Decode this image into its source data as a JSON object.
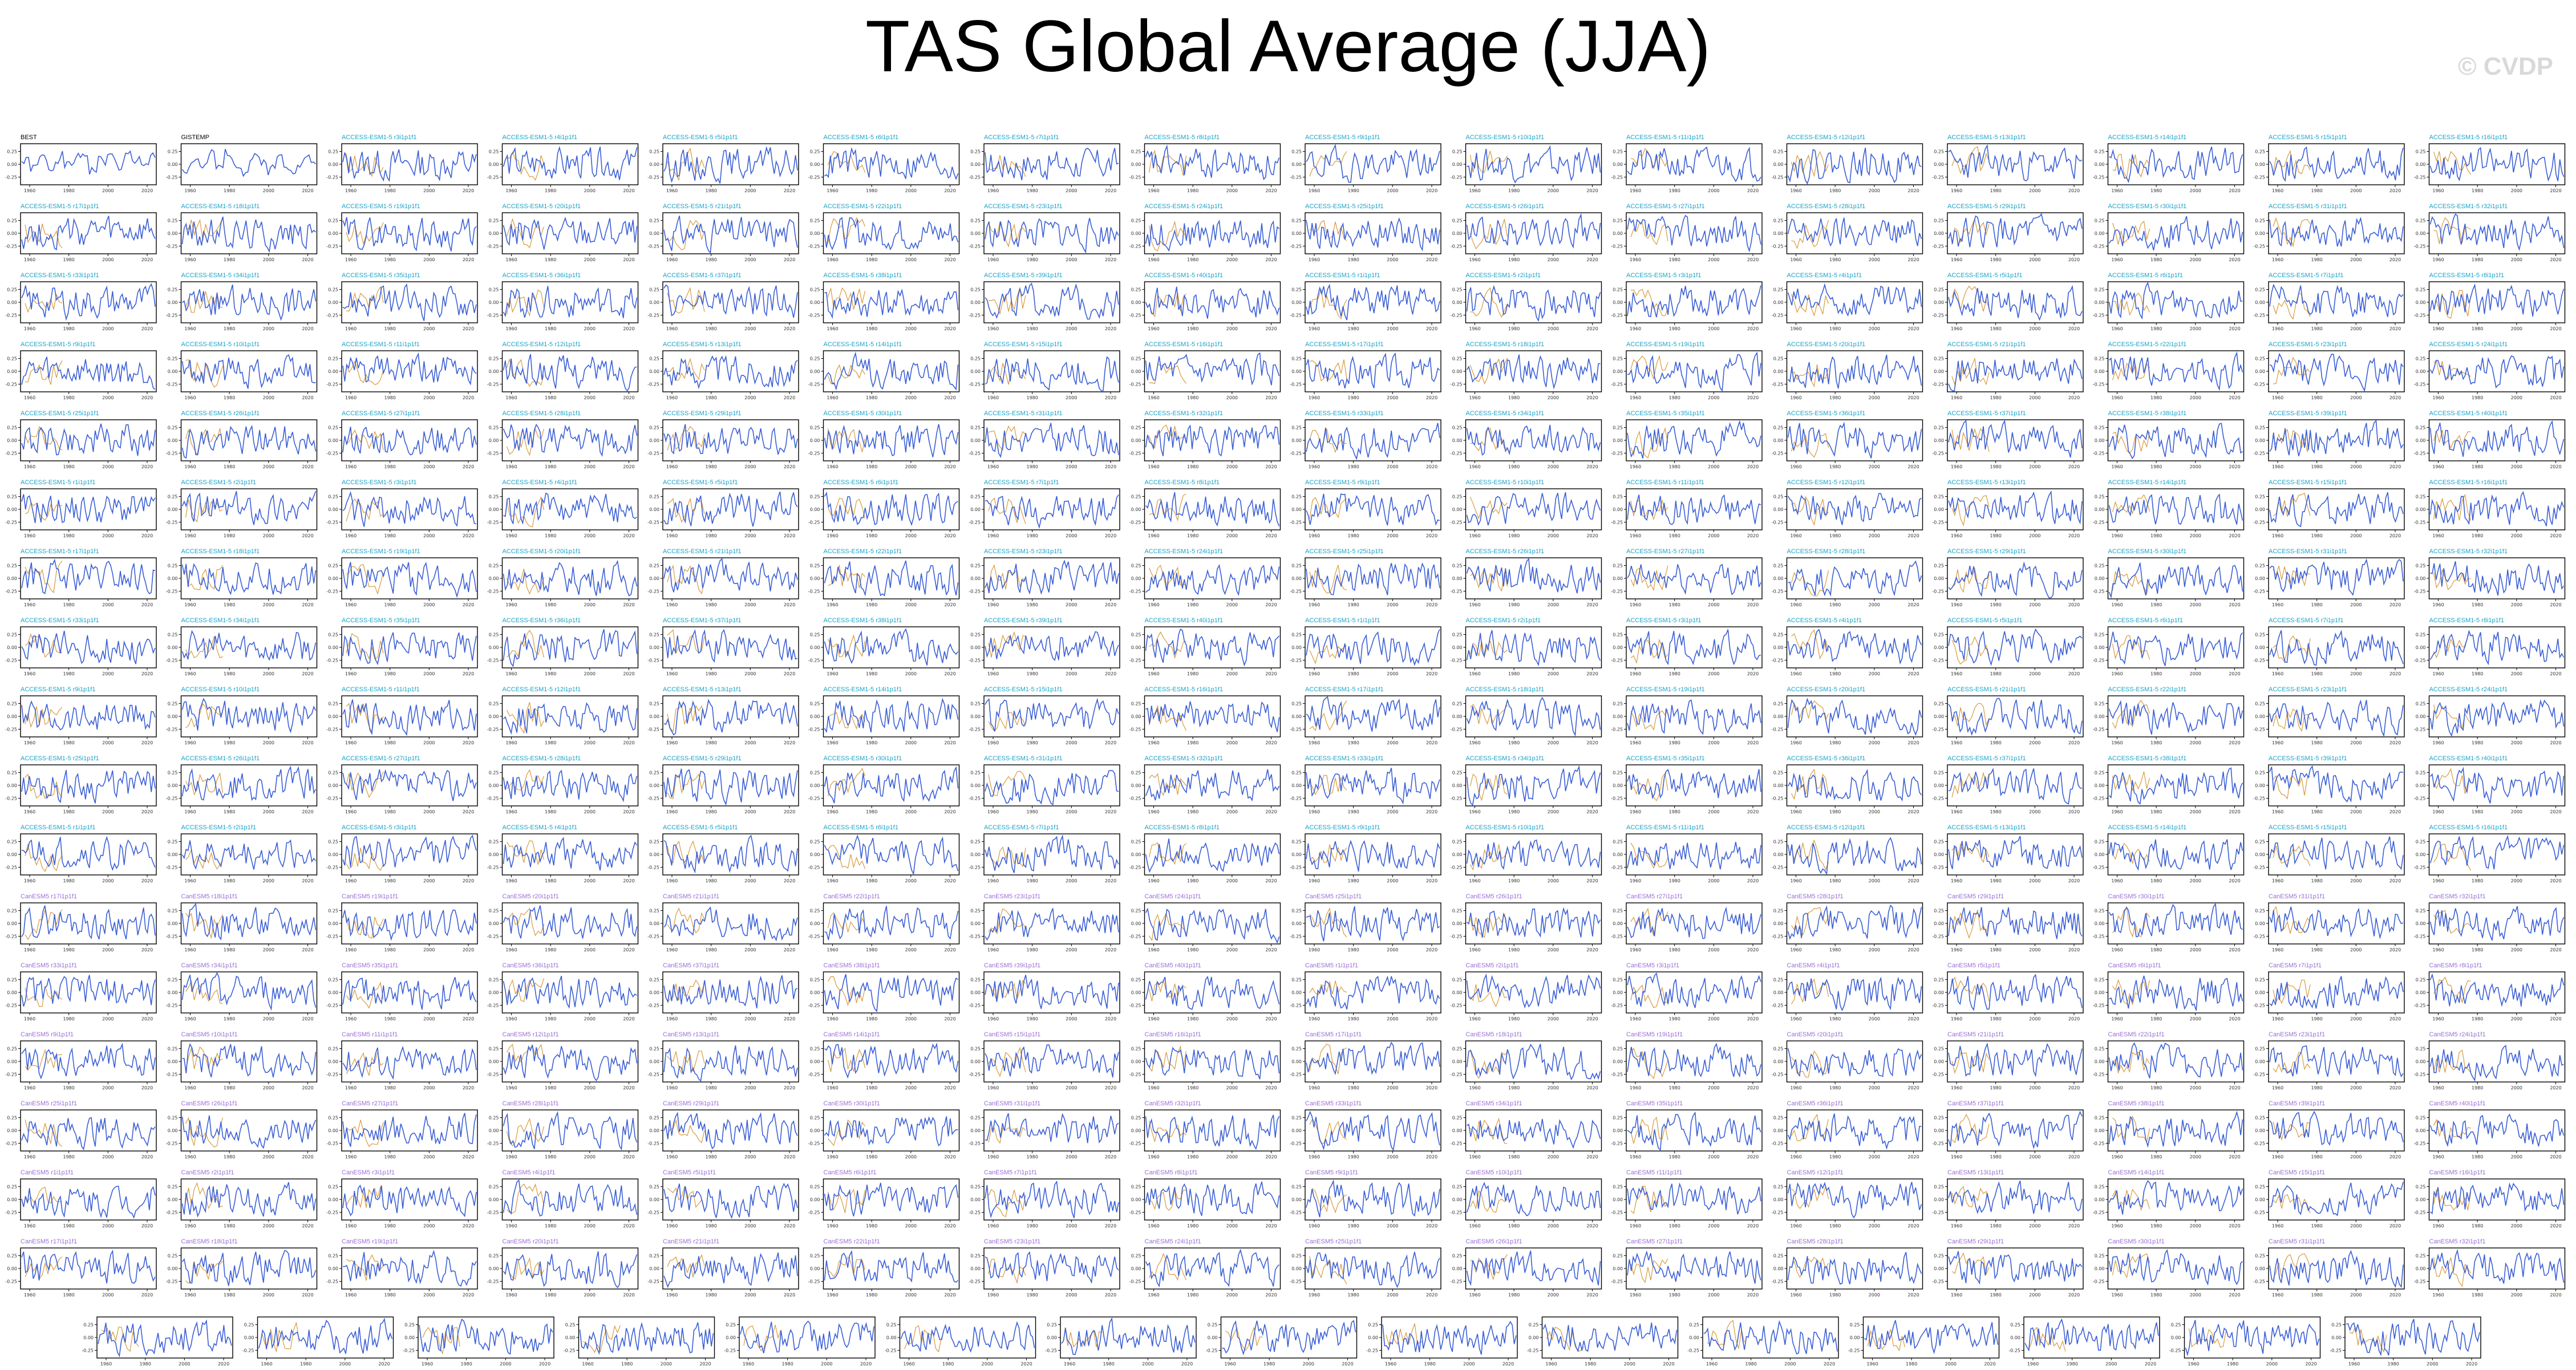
{
  "title": "TAS Global Average (JJA)",
  "watermark": "© CVDP",
  "colors": {
    "series": "#3b5fd6",
    "reference": "#d89a3c",
    "obs_title": "#000000",
    "access_title": "#1aa3c8",
    "canesm_title": "#9b6fd6",
    "axis": "#000000"
  },
  "chart_data": {
    "type": "line",
    "title": "TAS Global Average (JJA)",
    "grid": false,
    "layout_rows": 18,
    "panels_per_full_row": 16,
    "last_row_panels": 15,
    "observations": [
      {
        "name": "BEST",
        "values": [
          0.05,
          -0.1,
          0.12,
          -0.08,
          0.18,
          -0.05,
          0.1,
          0.22,
          -0.12,
          0.08,
          0.15,
          -0.06,
          0.2,
          0.1,
          -0.1,
          0.14
        ]
      },
      {
        "name": "GISTEMP",
        "values": [
          -0.08,
          0.1,
          -0.05,
          0.18,
          -0.12,
          0.25,
          0.05,
          -0.15,
          0.12,
          0.08,
          -0.1,
          0.16,
          0.02,
          -0.04,
          0.1,
          0.06
        ]
      }
    ],
    "ensemble_labels": {
      "access": "ACCESS-ESM1-5 r#i1p1f1",
      "canesm": "CanESM5 r#i1p1f1"
    },
    "x_ticks": [
      "1960",
      "1980",
      "2000",
      "2020"
    ],
    "y_ticks": [
      "0.25",
      "0.00",
      "-0.25"
    ],
    "ylim": [
      -0.4,
      0.4
    ]
  }
}
